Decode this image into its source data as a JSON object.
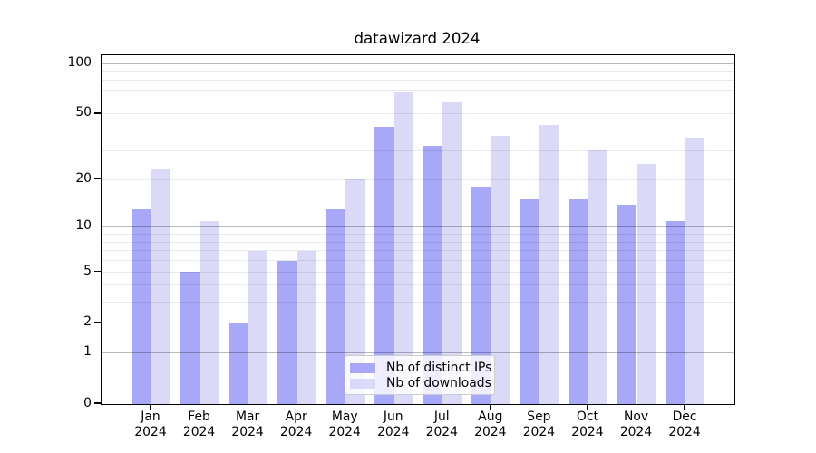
{
  "title": "datawizard 2024",
  "chart_data": {
    "type": "bar",
    "title": "datawizard 2024",
    "categories": [
      "Jan",
      "Feb",
      "Mar",
      "Apr",
      "May",
      "Jun",
      "Jul",
      "Aug",
      "Sep",
      "Oct",
      "Nov",
      "Dec"
    ],
    "x_tick_second_line": "2024",
    "series": [
      {
        "name": "Nb of distinct IPs",
        "color": "#a8a8f8",
        "values": [
          13,
          5,
          2,
          6,
          13,
          42,
          32,
          18,
          15,
          15,
          14,
          11
        ]
      },
      {
        "name": "Nb of downloads",
        "color": "#dadaf8",
        "values": [
          23,
          11,
          7,
          7,
          20,
          68,
          59,
          37,
          43,
          30,
          25,
          36
        ]
      }
    ],
    "xlabel": "",
    "ylabel": "",
    "yscale": "log1p",
    "ylim": [
      0,
      114
    ],
    "yticks": [
      0,
      1,
      2,
      5,
      10,
      20,
      50,
      100
    ],
    "ytick_labels": [
      "0",
      "1",
      "2",
      "5",
      "10",
      "20",
      "50",
      "100"
    ],
    "major_gridline_values": [
      1,
      10,
      100
    ],
    "minor_gridline_values": [
      2,
      3,
      4,
      5,
      6,
      7,
      8,
      9,
      20,
      30,
      40,
      50,
      60,
      70,
      80,
      90
    ],
    "grid": true,
    "legend": {
      "position": "inside-bottom-center",
      "entries": [
        "Nb of distinct IPs",
        "Nb of downloads"
      ]
    }
  },
  "colors": {
    "background": "#ffffff",
    "axis": "#000000",
    "major_grid": "rgba(0,0,0,0.27)",
    "minor_grid": "rgba(0,0,0,0.085)"
  }
}
